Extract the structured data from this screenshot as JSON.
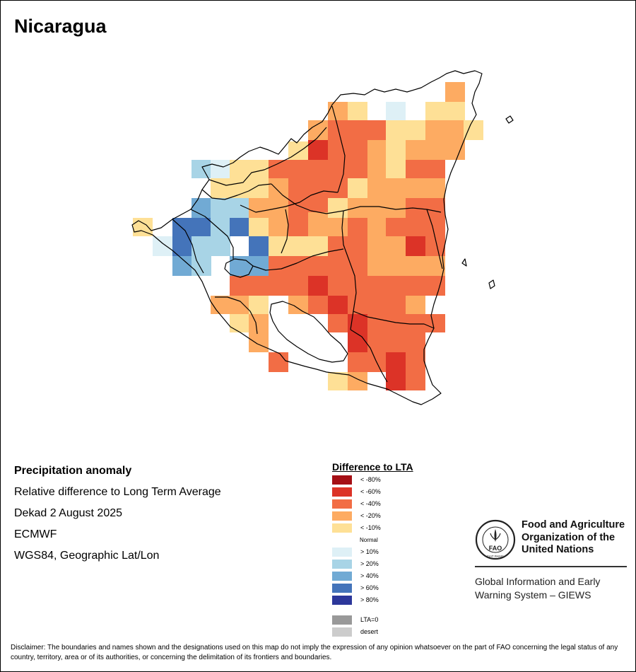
{
  "map_title": "Nicaragua",
  "info": {
    "heading": "Precipitation anomaly",
    "line1": "Relative difference to Long Term Average",
    "line2": "Dekad 2 August 2025",
    "line3": "ECMWF",
    "line4": "WGS84, Geographic Lat/Lon"
  },
  "legend": {
    "title": "Difference to LTA",
    "items": [
      {
        "label": "< -80%",
        "color": "#a50f15"
      },
      {
        "label": "< -60%",
        "color": "#dc3327"
      },
      {
        "label": "< -40%",
        "color": "#f26d45"
      },
      {
        "label": "< -20%",
        "color": "#fdab62"
      },
      {
        "label": "< -10%",
        "color": "#fee096"
      },
      {
        "label": "> 10%",
        "color": "#def0f6"
      },
      {
        "label": "> 20%",
        "color": "#a8d4e6"
      },
      {
        "label": "> 40%",
        "color": "#71aad4"
      },
      {
        "label": "> 60%",
        "color": "#4474ba"
      },
      {
        "label": "> 80%",
        "color": "#2c379a"
      },
      {
        "label": "LTA=0",
        "color": "#999999"
      },
      {
        "label": "desert",
        "color": "#cccccc"
      }
    ],
    "normal_label": "Normal"
  },
  "fao": {
    "name_lines": [
      "Food and Agriculture",
      "Organization of the",
      "United Nations"
    ],
    "program_lines": [
      "Global Information and Early",
      "Warning System – GIEWS"
    ],
    "logo_text": "FAO",
    "logo_motto": "FIAT PANIS"
  },
  "disclaimer": "Disclaimer: The boundaries and names shown and the designations used on this map do not imply the expression of any opinion whatsoever on the part of FAO concerning the legal status of any country, territory, area or of its authorities, or concerning the delimitation of its frontiers and boundaries."
}
